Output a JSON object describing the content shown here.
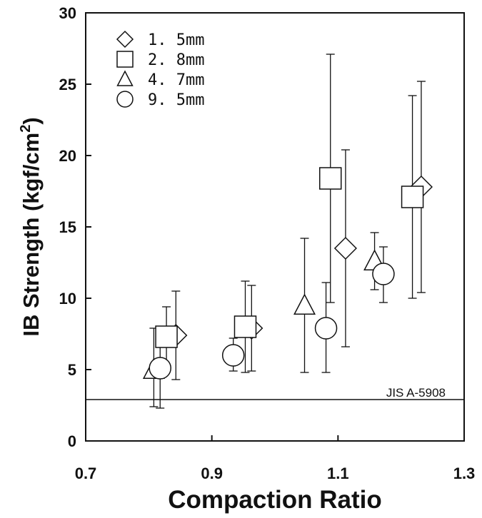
{
  "chart_data": {
    "type": "scatter",
    "xlabel": "Compaction Ratio",
    "ylabel_main": "IB Strength (kgf/cm",
    "ylabel_sup": "2",
    "ylabel_end": ")",
    "xlim": [
      0.7,
      1.3
    ],
    "ylim": [
      0,
      30
    ],
    "x_ticks": [
      0.7,
      0.9,
      1.1,
      1.3
    ],
    "x_tick_labels": [
      "0.7",
      "0.9",
      "1.1",
      "1.3"
    ],
    "y_ticks": [
      0,
      5,
      10,
      15,
      20,
      25,
      30
    ],
    "y_tick_labels": [
      "0",
      "5",
      "10",
      "15",
      "20",
      "25",
      "30"
    ],
    "grid": false,
    "legend_position": "top-left",
    "series": [
      {
        "name": "1.5mm",
        "label": "1. 5mm",
        "marker": "diamond",
        "points": [
          {
            "x": 0.843,
            "y": 7.4,
            "ylow": 4.3,
            "yhigh": 10.5
          },
          {
            "x": 0.963,
            "y": 7.9,
            "ylow": 4.9,
            "yhigh": 10.9
          },
          {
            "x": 1.112,
            "y": 13.5,
            "ylow": 6.6,
            "yhigh": 20.4
          },
          {
            "x": 1.232,
            "y": 17.8,
            "ylow": 10.4,
            "yhigh": 25.2
          }
        ]
      },
      {
        "name": "2.8mm",
        "label": "2. 8mm",
        "marker": "square",
        "points": [
          {
            "x": 0.828,
            "y": 7.3,
            "ylow": 5.2,
            "yhigh": 9.4
          },
          {
            "x": 0.953,
            "y": 8.0,
            "ylow": 4.8,
            "yhigh": 11.2
          },
          {
            "x": 1.088,
            "y": 18.4,
            "ylow": 9.7,
            "yhigh": 27.1
          },
          {
            "x": 1.218,
            "y": 17.1,
            "ylow": 10.0,
            "yhigh": 24.2
          }
        ]
      },
      {
        "name": "4.7mm",
        "label": "4. 7mm",
        "marker": "triangle",
        "points": [
          {
            "x": 0.808,
            "y": 5.0,
            "ylow": 2.4,
            "yhigh": 7.9
          },
          {
            "x": 1.047,
            "y": 9.5,
            "ylow": 4.8,
            "yhigh": 14.2
          },
          {
            "x": 1.158,
            "y": 12.6,
            "ylow": 10.6,
            "yhigh": 14.6
          }
        ]
      },
      {
        "name": "9.5mm",
        "label": "9. 5mm",
        "marker": "circle",
        "points": [
          {
            "x": 0.818,
            "y": 5.1,
            "ylow": 2.3,
            "yhigh": 7.8
          },
          {
            "x": 0.934,
            "y": 6.0,
            "ylow": 4.9,
            "yhigh": 7.2
          },
          {
            "x": 1.081,
            "y": 7.9,
            "ylow": 4.8,
            "yhigh": 11.1
          },
          {
            "x": 1.172,
            "y": 11.7,
            "ylow": 9.7,
            "yhigh": 13.6
          }
        ]
      }
    ],
    "reference_line": {
      "y": 2.9,
      "label": "JIS A-5908"
    }
  }
}
